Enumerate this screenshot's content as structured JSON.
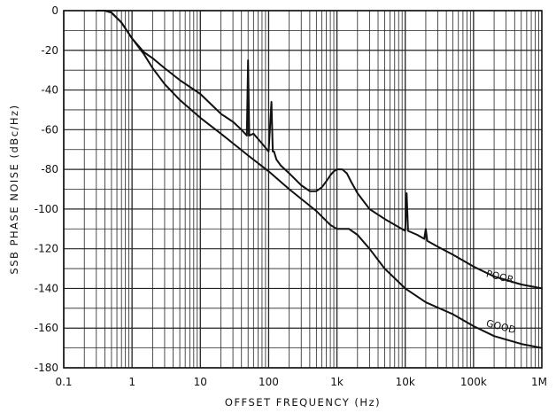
{
  "chart_data": {
    "type": "line",
    "xscale": "log",
    "xlim": [
      0.1,
      1000000
    ],
    "ylim": [
      -180,
      0
    ],
    "grid": true,
    "xlabel": "OFFSET FREQUENCY (Hz)",
    "ylabel": "SSB PHASE NOISE (dBc/Hz)",
    "x_ticks": [
      {
        "value": 0.1,
        "label": "0.1"
      },
      {
        "value": 1,
        "label": "1"
      },
      {
        "value": 10,
        "label": "10"
      },
      {
        "value": 100,
        "label": "100"
      },
      {
        "value": 1000,
        "label": "1k"
      },
      {
        "value": 10000,
        "label": "10k"
      },
      {
        "value": 100000,
        "label": "100k"
      },
      {
        "value": 1000000,
        "label": "1M"
      }
    ],
    "y_ticks": [
      {
        "value": 0,
        "label": "0"
      },
      {
        "value": -20,
        "label": "-20"
      },
      {
        "value": -40,
        "label": "-40"
      },
      {
        "value": -60,
        "label": "-60"
      },
      {
        "value": -80,
        "label": "-80"
      },
      {
        "value": -100,
        "label": "-100"
      },
      {
        "value": -120,
        "label": "-120"
      },
      {
        "value": -140,
        "label": "-140"
      },
      {
        "value": -160,
        "label": "-160"
      },
      {
        "value": -180,
        "label": "-180"
      }
    ],
    "series": [
      {
        "name": "POOR",
        "x": [
          0.3,
          0.4,
          0.5,
          0.7,
          1,
          1.5,
          2,
          3,
          5,
          10,
          20,
          30,
          40,
          48,
          50,
          52,
          60,
          80,
          100,
          110,
          115,
          120,
          130,
          150,
          200,
          300,
          400,
          500,
          600,
          700,
          800,
          900,
          1000,
          1200,
          1400,
          1600,
          2000,
          3000,
          5000,
          10000,
          10500,
          11000,
          15000,
          19000,
          20000,
          21000,
          30000,
          50000,
          100000,
          200000,
          500000,
          1000000
        ],
        "y": [
          0,
          0,
          -1,
          -6,
          -14,
          -21,
          -24,
          -29,
          -35,
          -42,
          -52,
          -56,
          -60,
          -63,
          -25,
          -63,
          -62,
          -67,
          -71,
          -46,
          -71,
          -71,
          -75,
          -78,
          -82,
          -88,
          -91,
          -91,
          -89,
          -86,
          -83,
          -81,
          -80,
          -80,
          -82,
          -86,
          -92,
          -100,
          -105,
          -111,
          -92,
          -111,
          -113,
          -115,
          -110,
          -116,
          -119,
          -123,
          -129,
          -134,
          -138,
          -140
        ]
      },
      {
        "name": "GOOD",
        "x": [
          0.3,
          0.4,
          0.5,
          0.7,
          1,
          1.5,
          2,
          3,
          5,
          10,
          20,
          50,
          100,
          200,
          500,
          800,
          1000,
          1500,
          2000,
          3000,
          5000,
          10000,
          20000,
          50000,
          100000,
          200000,
          500000,
          1000000
        ],
        "y": [
          0,
          0,
          -1,
          -6,
          -14,
          -22,
          -29,
          -37,
          -45,
          -54,
          -62,
          -73,
          -81,
          -90,
          -101,
          -108,
          -110,
          -110,
          -113,
          -120,
          -130,
          -140,
          -147,
          -153,
          -159,
          -164,
          -168,
          -170
        ]
      }
    ],
    "annotations": [
      {
        "text": "POOR",
        "x": 150000,
        "y": -134
      },
      {
        "text": "GOOD",
        "x": 150000,
        "y": -159
      }
    ]
  }
}
